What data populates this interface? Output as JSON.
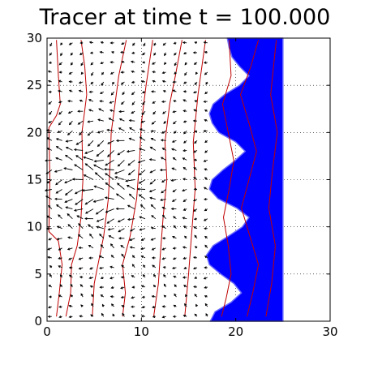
{
  "chart_data": {
    "type": "quiver",
    "title": "Tracer at time t = 100.000",
    "xlabel": "",
    "ylabel": "",
    "xlim": [
      0,
      30
    ],
    "ylim": [
      0,
      30
    ],
    "x_ticks": [
      "0",
      "10",
      "20",
      "30"
    ],
    "y_ticks": [
      "0",
      "5",
      "10",
      "15",
      "20",
      "25",
      "30"
    ],
    "grid": "dotted, right part of axes only",
    "tracer": {
      "color": "#0000ff",
      "right_edge_x": 25,
      "front_profile": [
        [
          0,
          17.3
        ],
        [
          1,
          17.8
        ],
        [
          2,
          19.5
        ],
        [
          3,
          20.6
        ],
        [
          4,
          19.8
        ],
        [
          5,
          18.4
        ],
        [
          6,
          17.2
        ],
        [
          7,
          16.9
        ],
        [
          8,
          17.6
        ],
        [
          9,
          19.2
        ],
        [
          10,
          20.7
        ],
        [
          11,
          21.4
        ],
        [
          12,
          20.1
        ],
        [
          13,
          18.1
        ],
        [
          14,
          17.2
        ],
        [
          15,
          17.5
        ],
        [
          16,
          18.6
        ],
        [
          17,
          19.9
        ],
        [
          18,
          21.0
        ],
        [
          19,
          20.0
        ],
        [
          20,
          18.2
        ],
        [
          21,
          17.5
        ],
        [
          22,
          17.2
        ],
        [
          23,
          17.6
        ],
        [
          24,
          18.8
        ],
        [
          25,
          20.4
        ],
        [
          26,
          21.4
        ],
        [
          27,
          20.4
        ],
        [
          28,
          19.6
        ],
        [
          29,
          19.3
        ],
        [
          30,
          19.1
        ]
      ]
    },
    "contours": {
      "color": "#c00000",
      "lines": [
        [
          [
            1.0,
            0.5
          ],
          [
            1.3,
            3
          ],
          [
            1.6,
            6
          ],
          [
            1.2,
            8.5
          ],
          [
            0.2,
            9.5
          ],
          [
            0.3,
            15
          ],
          [
            0.2,
            20.5
          ],
          [
            1.0,
            21.8
          ],
          [
            1.4,
            23
          ],
          [
            1.2,
            26
          ],
          [
            1.0,
            29.8
          ]
        ],
        [
          [
            2.0,
            0.5
          ],
          [
            2.5,
            3
          ],
          [
            2.6,
            6
          ],
          [
            3.2,
            8
          ],
          [
            3.6,
            11
          ],
          [
            3.8,
            15
          ],
          [
            3.7,
            20
          ],
          [
            4.2,
            24
          ],
          [
            4.0,
            27
          ],
          [
            3.6,
            29.8
          ]
        ],
        [
          [
            4.8,
            0.5
          ],
          [
            5.0,
            4
          ],
          [
            5.4,
            6
          ],
          [
            6.0,
            9
          ],
          [
            6.5,
            13
          ],
          [
            6.7,
            17
          ],
          [
            6.8,
            20
          ],
          [
            7.2,
            23
          ],
          [
            7.6,
            26
          ],
          [
            8.4,
            29.8
          ]
        ],
        [
          [
            8.0,
            0.5
          ],
          [
            8.3,
            3
          ],
          [
            8.0,
            6
          ],
          [
            8.8,
            9
          ],
          [
            9.5,
            13
          ],
          [
            9.8,
            17
          ],
          [
            10.0,
            21
          ],
          [
            10.5,
            25
          ],
          [
            11.2,
            29.8
          ]
        ],
        [
          [
            11.3,
            0.5
          ],
          [
            11.8,
            4
          ],
          [
            12.0,
            7
          ],
          [
            12.3,
            11
          ],
          [
            12.7,
            15
          ],
          [
            12.5,
            19
          ],
          [
            13.0,
            23
          ],
          [
            13.6,
            26
          ],
          [
            14.3,
            29.8
          ]
        ],
        [
          [
            14.6,
            0.5
          ],
          [
            15.0,
            5
          ],
          [
            15.3,
            9
          ],
          [
            15.7,
            14
          ],
          [
            15.5,
            19
          ],
          [
            16.0,
            24
          ],
          [
            16.8,
            29.8
          ]
        ],
        [
          [
            18.5,
            0.5
          ],
          [
            19.0,
            2.5
          ],
          [
            19.5,
            5
          ],
          [
            19.2,
            8
          ],
          [
            18.7,
            11
          ],
          [
            19.3,
            14
          ],
          [
            19.8,
            17
          ],
          [
            19.2,
            20
          ],
          [
            18.6,
            23
          ],
          [
            19.5,
            26
          ],
          [
            19.3,
            29.8
          ]
        ],
        [
          [
            21.2,
            0.5
          ],
          [
            21.8,
            3
          ],
          [
            22.4,
            6
          ],
          [
            21.5,
            9
          ],
          [
            20.6,
            12
          ],
          [
            21.4,
            15
          ],
          [
            22.2,
            18
          ],
          [
            21.4,
            21
          ],
          [
            20.5,
            24
          ],
          [
            21.6,
            27
          ],
          [
            22.4,
            29.8
          ]
        ],
        [
          [
            23.2,
            0.5
          ],
          [
            23.8,
            4
          ],
          [
            24.2,
            8
          ],
          [
            23.5,
            12
          ],
          [
            23.9,
            16
          ],
          [
            24.4,
            20
          ],
          [
            23.7,
            24
          ],
          [
            24.1,
            28
          ],
          [
            24.3,
            29.8
          ]
        ]
      ]
    },
    "vector_field": {
      "color": "#000000",
      "x_range": [
        0.5,
        17
      ],
      "y_range": [
        0.5,
        29.5
      ],
      "columns": 16,
      "rows": 29,
      "note": "near-horizontal velocity arrows, strongest around y = 15 between x = 1 and x = 10"
    }
  }
}
